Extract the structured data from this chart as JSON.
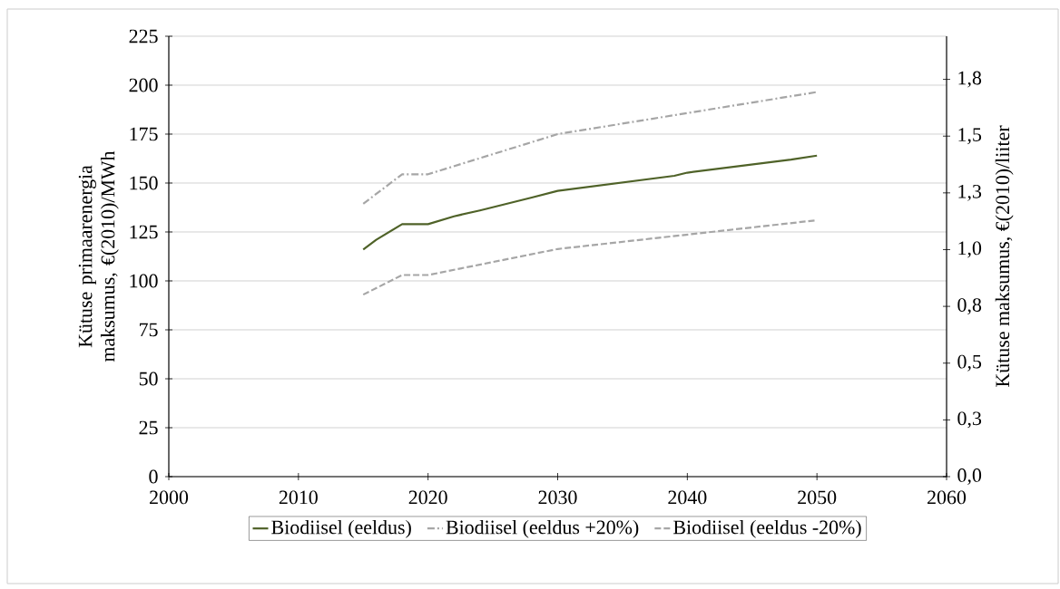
{
  "chart_data": {
    "type": "line",
    "x": [
      2015,
      2016,
      2018,
      2020,
      2022,
      2024,
      2028,
      2030,
      2039,
      2040,
      2048,
      2050
    ],
    "series": [
      {
        "name": "Biodiisel (eeldus)",
        "color": "#4f6228",
        "line_style": "solid",
        "values": [
          116,
          121,
          129,
          129,
          133,
          136,
          142.6,
          146,
          153.7,
          155.3,
          162,
          164
        ]
      },
      {
        "name": "Biodiisel (eeldus +20%)",
        "color": "#a6a6a6",
        "line_style": "dashdot",
        "x": [
          2015,
          2018,
          2020,
          2030,
          2050
        ],
        "values": [
          139.4,
          154.5,
          154.5,
          175,
          196.5
        ]
      },
      {
        "name": "Biodiisel (eeldus -20%)",
        "color": "#a6a6a6",
        "line_style": "dashed",
        "x": [
          2015,
          2018,
          2020,
          2030,
          2050
        ],
        "values": [
          93,
          103,
          103,
          116.3,
          131
        ]
      }
    ],
    "xlim": [
      2000,
      2060
    ],
    "xticks": [
      2000,
      2010,
      2020,
      2030,
      2040,
      2050,
      2060
    ],
    "ylim": [
      0,
      225
    ],
    "yticks": [
      0,
      25,
      50,
      75,
      100,
      125,
      150,
      175,
      200,
      225
    ],
    "y2lim": [
      0,
      1.94
    ],
    "y2ticks": [
      {
        "value": 0,
        "label": "0,0"
      },
      {
        "value": 0.25,
        "label": "0,3"
      },
      {
        "value": 0.5,
        "label": "0,5"
      },
      {
        "value": 0.75,
        "label": "0,8"
      },
      {
        "value": 1.0,
        "label": "1,0"
      },
      {
        "value": 1.25,
        "label": "1,3"
      },
      {
        "value": 1.5,
        "label": "1,5"
      },
      {
        "value": 1.75,
        "label": "1,8"
      }
    ],
    "ylabel": "Kütuse  primaarenergia maksumus, €(2010)/MWh",
    "y2label": "Kütuse maksumus, €(2010)/liiter",
    "grid": "y",
    "legend": "bottom",
    "marker": "none"
  }
}
